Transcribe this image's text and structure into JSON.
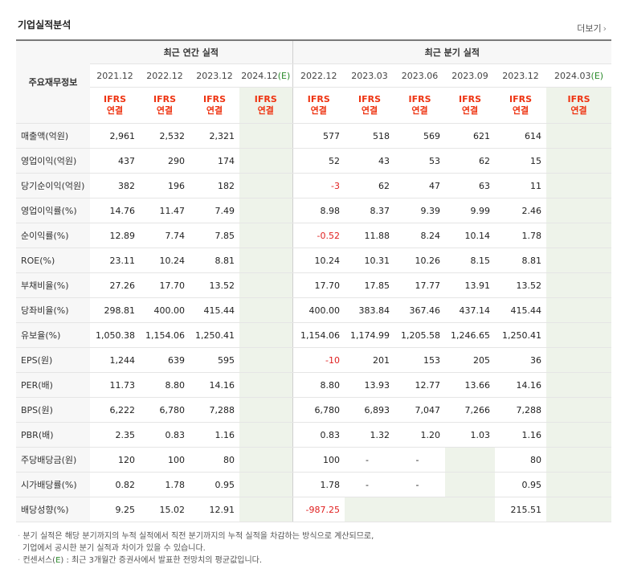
{
  "title": "기업실적분석",
  "more_label": "더보기",
  "more_arrow": "›",
  "header": {
    "row_label": "주요재무정보",
    "annual": "최근 연간 실적",
    "quarterly": "최근 분기 실적",
    "annual_periods": [
      "2021.12",
      "2022.12",
      "2023.12",
      "2024.12(E)"
    ],
    "quarterly_periods": [
      "2022.12",
      "2023.03",
      "2023.06",
      "2023.09",
      "2023.12",
      "2024.03(E)"
    ],
    "ifrs_line1": "IFRS",
    "ifrs_line2": "연결"
  },
  "rows": [
    {
      "label": "매출액(억원)",
      "annual": [
        "2,961",
        "2,532",
        "2,321",
        ""
      ],
      "quarterly": [
        "577",
        "518",
        "569",
        "621",
        "614",
        ""
      ]
    },
    {
      "label": "영업이익(억원)",
      "annual": [
        "437",
        "290",
        "174",
        ""
      ],
      "quarterly": [
        "52",
        "43",
        "53",
        "62",
        "15",
        ""
      ]
    },
    {
      "label": "당기순이익(억원)",
      "annual": [
        "382",
        "196",
        "182",
        ""
      ],
      "quarterly": [
        "-3",
        "62",
        "47",
        "63",
        "11",
        ""
      ]
    },
    {
      "label": "영업이익률(%)",
      "annual": [
        "14.76",
        "11.47",
        "7.49",
        ""
      ],
      "quarterly": [
        "8.98",
        "8.37",
        "9.39",
        "9.99",
        "2.46",
        ""
      ]
    },
    {
      "label": "순이익률(%)",
      "annual": [
        "12.89",
        "7.74",
        "7.85",
        ""
      ],
      "quarterly": [
        "-0.52",
        "11.88",
        "8.24",
        "10.14",
        "1.78",
        ""
      ]
    },
    {
      "label": "ROE(%)",
      "annual": [
        "23.11",
        "10.24",
        "8.81",
        ""
      ],
      "quarterly": [
        "10.24",
        "10.31",
        "10.26",
        "8.15",
        "8.81",
        ""
      ]
    },
    {
      "label": "부채비율(%)",
      "annual": [
        "27.26",
        "17.70",
        "13.52",
        ""
      ],
      "quarterly": [
        "17.70",
        "17.85",
        "17.77",
        "13.91",
        "13.52",
        ""
      ]
    },
    {
      "label": "당좌비율(%)",
      "annual": [
        "298.81",
        "400.00",
        "415.44",
        ""
      ],
      "quarterly": [
        "400.00",
        "383.84",
        "367.46",
        "437.14",
        "415.44",
        ""
      ]
    },
    {
      "label": "유보율(%)",
      "annual": [
        "1,050.38",
        "1,154.06",
        "1,250.41",
        ""
      ],
      "quarterly": [
        "1,154.06",
        "1,174.99",
        "1,205.58",
        "1,246.65",
        "1,250.41",
        ""
      ]
    },
    {
      "label": "EPS(원)",
      "annual": [
        "1,244",
        "639",
        "595",
        ""
      ],
      "quarterly": [
        "-10",
        "201",
        "153",
        "205",
        "36",
        ""
      ]
    },
    {
      "label": "PER(배)",
      "annual": [
        "11.73",
        "8.80",
        "14.16",
        ""
      ],
      "quarterly": [
        "8.80",
        "13.93",
        "12.77",
        "13.66",
        "14.16",
        ""
      ]
    },
    {
      "label": "BPS(원)",
      "annual": [
        "6,222",
        "6,780",
        "7,288",
        ""
      ],
      "quarterly": [
        "6,780",
        "6,893",
        "7,047",
        "7,266",
        "7,288",
        ""
      ]
    },
    {
      "label": "PBR(배)",
      "annual": [
        "2.35",
        "0.83",
        "1.16",
        ""
      ],
      "quarterly": [
        "0.83",
        "1.32",
        "1.20",
        "1.03",
        "1.16",
        ""
      ]
    },
    {
      "label": "주당배당금(원)",
      "annual": [
        "120",
        "100",
        "80",
        ""
      ],
      "quarterly": [
        "100",
        "-",
        "-",
        "",
        "80",
        ""
      ]
    },
    {
      "label": "시가배당률(%)",
      "annual": [
        "0.82",
        "1.78",
        "0.95",
        ""
      ],
      "quarterly": [
        "1.78",
        "-",
        "-",
        "",
        "0.95",
        ""
      ]
    },
    {
      "label": "배당성향(%)",
      "annual": [
        "9.25",
        "15.02",
        "12.91",
        ""
      ],
      "quarterly": [
        "-987.25",
        "",
        "",
        "",
        "215.51",
        ""
      ]
    }
  ],
  "notes": {
    "line1": "분기 실적은 해당 분기까지의 누적 실적에서 직전 분기까지의 누적 실적을 차감하는 방식으로 계산되므로,",
    "line2": "기업에서 공시한 분기 실적과 차이가 있을 수 있습니다.",
    "line3_pre": "컨센서스(",
    "line3_e": "E",
    "line3_post": ") : 최근 3개월간 증권사에서 발표한 전망치의 평균값입니다."
  },
  "colors": {
    "ifrs": "#ee3311",
    "estimate": "#2a8a2a",
    "negative": "#e02020",
    "estimate_bg": "#eef3ea"
  }
}
